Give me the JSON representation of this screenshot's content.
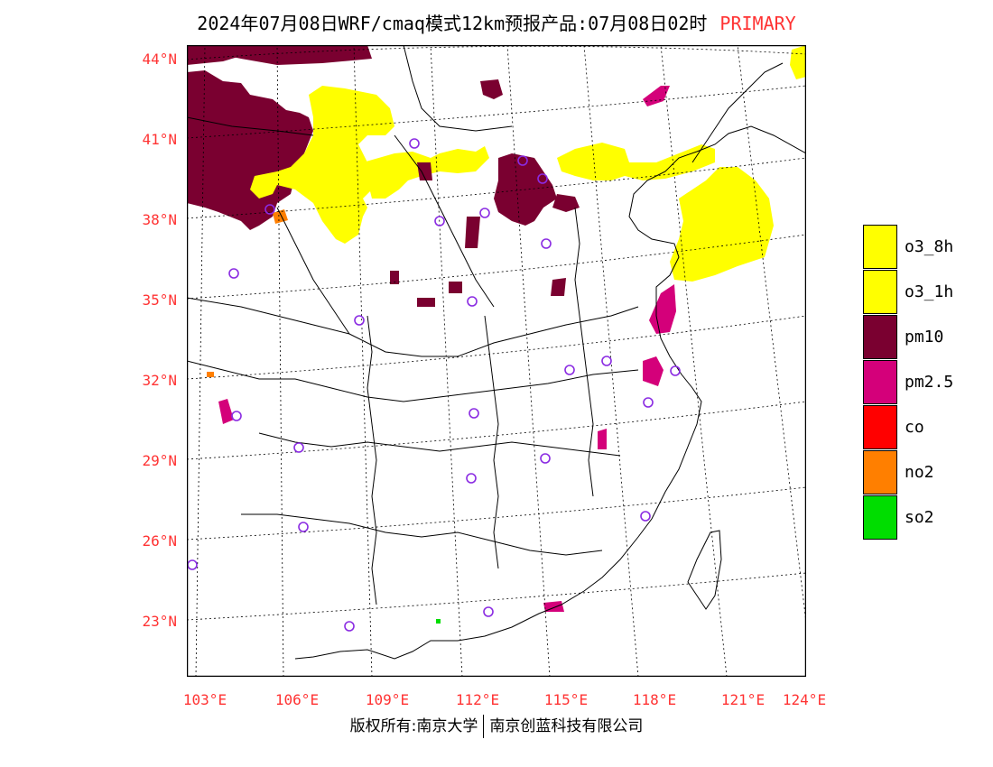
{
  "title": {
    "text": "2024年07月08日WRF/cmaq模式12km预报产品:07月08日02时",
    "tag": "PRIMARY"
  },
  "axes": {
    "lat_labels": [
      "44°N",
      "41°N",
      "38°N",
      "35°N",
      "32°N",
      "29°N",
      "26°N",
      "23°N"
    ],
    "lon_labels": [
      "103°E",
      "106°E",
      "109°E",
      "112°E",
      "115°E",
      "118°E",
      "121°E",
      "124°E"
    ]
  },
  "legend": [
    {
      "label": "o3_8h",
      "color": "#ffff00"
    },
    {
      "label": "o3_1h",
      "color": "#ffff00"
    },
    {
      "label": "pm10",
      "color": "#7a0030"
    },
    {
      "label": "pm2.5",
      "color": "#d4007a"
    },
    {
      "label": "co",
      "color": "#ff0000"
    },
    {
      "label": "no2",
      "color": "#ff7f00"
    },
    {
      "label": "so2",
      "color": "#00dd00"
    }
  ],
  "footer": {
    "left": "版权所有:南京大学",
    "right": "南京创蓝科技有限公司"
  },
  "colors": {
    "axis_label": "#ff3333",
    "station_marker": "#8a2be2"
  }
}
